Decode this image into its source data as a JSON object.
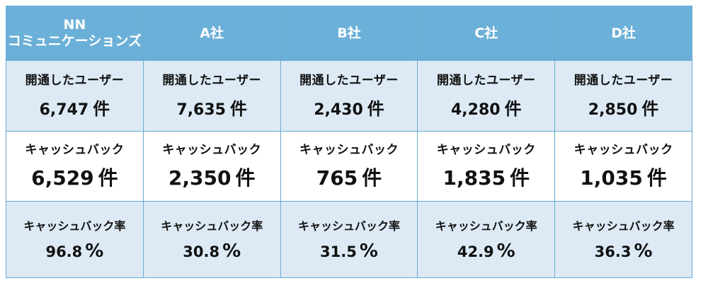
{
  "header": {
    "nn_line1": "NN",
    "nn_line2": "コミュニケーションズ",
    "a": "A社",
    "b": "B社",
    "c": "C社",
    "d": "D社"
  },
  "rows": {
    "opened": {
      "label": "開通したユーザー",
      "unit": "件",
      "values": [
        "6,747",
        "7,635",
        "2,430",
        "4,280",
        "2,850"
      ]
    },
    "cashback": {
      "label": "キャッシュバック",
      "unit": "件",
      "values": [
        "6,529",
        "2,350",
        "765",
        "1,835",
        "1,035"
      ]
    },
    "rate": {
      "label": "キャッシュバック率",
      "unit": "%",
      "values": [
        "96.8",
        "30.8",
        "31.5",
        "42.9",
        "36.3"
      ]
    }
  },
  "colors": {
    "header_bg": "#6bb0d8",
    "shaded_row_bg": "#ddeaf5",
    "border": "#6aa9d2"
  }
}
